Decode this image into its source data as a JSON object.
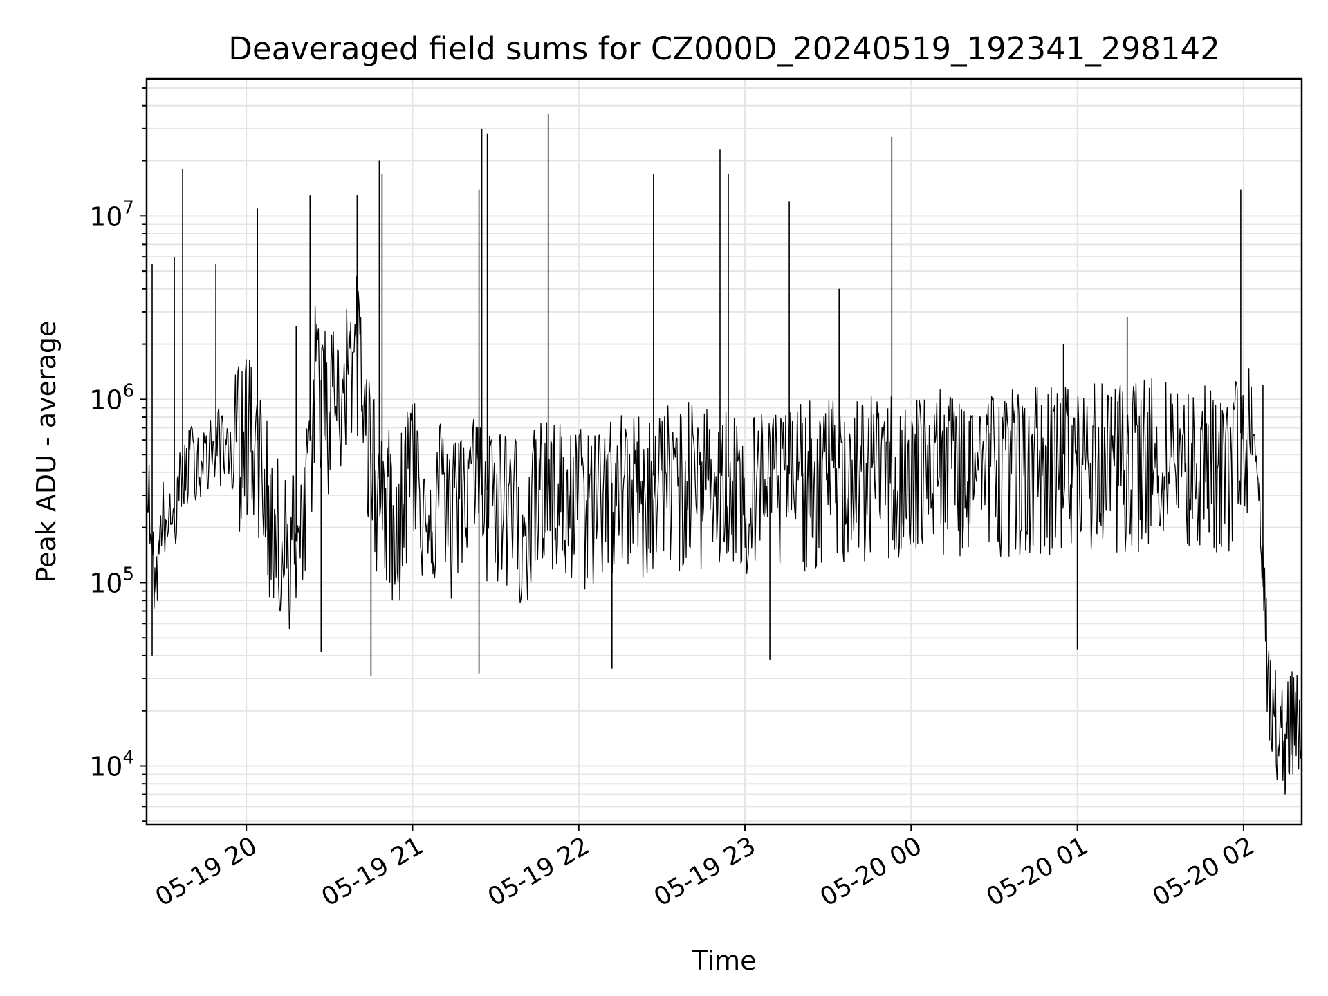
{
  "chart_data": {
    "type": "line",
    "title": "Deaveraged field sums for CZ000D_20240519_192341_298142",
    "xlabel": "Time",
    "ylabel": "Peak ADU - average",
    "yscale": "log",
    "ylim": [
      4800,
      56000000
    ],
    "xlim": [
      "2024-05-19 19:24",
      "2024-05-20 02:21"
    ],
    "grid": true,
    "line_color": "#000000",
    "grid_color": "#e5e5e5",
    "x_ticks": [
      {
        "label": "05-19 20",
        "value": "2024-05-19 20:00"
      },
      {
        "label": "05-19 21",
        "value": "2024-05-19 21:00"
      },
      {
        "label": "05-19 22",
        "value": "2024-05-19 22:00"
      },
      {
        "label": "05-19 23",
        "value": "2024-05-19 23:00"
      },
      {
        "label": "05-20 00",
        "value": "2024-05-20 00:00"
      },
      {
        "label": "05-20 01",
        "value": "2024-05-20 01:00"
      },
      {
        "label": "05-20 02",
        "value": "2024-05-20 02:00"
      }
    ],
    "y_ticks": [
      {
        "base": "10",
        "exp": "4",
        "value": 10000
      },
      {
        "base": "10",
        "exp": "5",
        "value": 100000
      },
      {
        "base": "10",
        "exp": "6",
        "value": 1000000
      },
      {
        "base": "10",
        "exp": "7",
        "value": 10000000
      }
    ],
    "series": [
      {
        "x": [
          "2024-05-19 19:24",
          "2024-05-19 19:27",
          "2024-05-19 19:30",
          "2024-05-19 19:33",
          "2024-05-19 19:36",
          "2024-05-19 19:40",
          "2024-05-19 19:45",
          "2024-05-19 19:50",
          "2024-05-19 19:55",
          "2024-05-19 20:00",
          "2024-05-19 20:04",
          "2024-05-19 20:10",
          "2024-05-19 20:15",
          "2024-05-19 20:20",
          "2024-05-19 20:25",
          "2024-05-19 20:30",
          "2024-05-19 20:35",
          "2024-05-19 20:40",
          "2024-05-19 20:45",
          "2024-05-19 20:50",
          "2024-05-19 20:55",
          "2024-05-19 21:00",
          "2024-05-19 21:05",
          "2024-05-19 21:10",
          "2024-05-19 21:15",
          "2024-05-19 21:20",
          "2024-05-19 21:25",
          "2024-05-19 21:30",
          "2024-05-19 21:35",
          "2024-05-19 21:40",
          "2024-05-19 21:45",
          "2024-05-19 21:50",
          "2024-05-19 21:55",
          "2024-05-19 22:00",
          "2024-05-19 22:10",
          "2024-05-19 22:20",
          "2024-05-19 22:30",
          "2024-05-19 22:40",
          "2024-05-19 22:50",
          "2024-05-19 23:00",
          "2024-05-19 23:10",
          "2024-05-19 23:20",
          "2024-05-19 23:30",
          "2024-05-19 23:40",
          "2024-05-19 23:50",
          "2024-05-20 00:00",
          "2024-05-20 00:10",
          "2024-05-20 00:20",
          "2024-05-20 00:30",
          "2024-05-20 00:40",
          "2024-05-20 00:50",
          "2024-05-20 01:00",
          "2024-05-20 01:10",
          "2024-05-20 01:20",
          "2024-05-20 01:30",
          "2024-05-20 01:40",
          "2024-05-20 01:50",
          "2024-05-20 01:55",
          "2024-05-20 02:00",
          "2024-05-20 02:03",
          "2024-05-20 02:06",
          "2024-05-20 02:09",
          "2024-05-20 02:12",
          "2024-05-20 02:15",
          "2024-05-20 02:18",
          "2024-05-20 02:21"
        ],
        "y": [
          500000,
          100000,
          250000,
          200000,
          350000,
          500000,
          500000,
          600000,
          550000,
          800000,
          600000,
          200000,
          200000,
          150000,
          1500000,
          1000000,
          1500000,
          2000000,
          500000,
          300000,
          250000,
          600000,
          300000,
          350000,
          250000,
          500000,
          300000,
          350000,
          300000,
          250000,
          300000,
          350000,
          300000,
          300000,
          350000,
          350000,
          400000,
          400000,
          400000,
          350000,
          380000,
          400000,
          420000,
          420000,
          450000,
          450000,
          470000,
          470000,
          480000,
          500000,
          500000,
          500000,
          520000,
          500000,
          600000,
          500000,
          500000,
          500000,
          700000,
          600000,
          200000,
          30000,
          18000,
          15000,
          20000,
          18000
        ],
        "spikes": [
          {
            "x": "2024-05-19 19:26",
            "y": 5500000
          },
          {
            "x": "2024-05-19 19:34",
            "y": 6000000
          },
          {
            "x": "2024-05-19 19:37",
            "y": 18000000
          },
          {
            "x": "2024-05-19 19:49",
            "y": 5500000
          },
          {
            "x": "2024-05-19 20:04",
            "y": 11000000
          },
          {
            "x": "2024-05-19 20:18",
            "y": 2500000
          },
          {
            "x": "2024-05-19 20:23",
            "y": 13000000
          },
          {
            "x": "2024-05-19 20:40",
            "y": 13000000
          },
          {
            "x": "2024-05-19 20:48",
            "y": 20000000
          },
          {
            "x": "2024-05-19 20:49",
            "y": 17000000
          },
          {
            "x": "2024-05-19 21:24",
            "y": 14000000
          },
          {
            "x": "2024-05-19 21:25",
            "y": 30000000
          },
          {
            "x": "2024-05-19 21:27",
            "y": 28000000
          },
          {
            "x": "2024-05-19 21:49",
            "y": 36000000
          },
          {
            "x": "2024-05-19 22:27",
            "y": 17000000
          },
          {
            "x": "2024-05-19 22:51",
            "y": 23000000
          },
          {
            "x": "2024-05-19 22:54",
            "y": 17000000
          },
          {
            "x": "2024-05-19 23:16",
            "y": 12000000
          },
          {
            "x": "2024-05-19 23:34",
            "y": 4000000
          },
          {
            "x": "2024-05-19 23:53",
            "y": 27000000
          },
          {
            "x": "2024-05-20 00:55",
            "y": 2000000
          },
          {
            "x": "2024-05-20 01:18",
            "y": 2800000
          },
          {
            "x": "2024-05-20 01:59",
            "y": 14000000
          },
          {
            "x": "2024-05-20 02:07",
            "y": 1200000
          }
        ],
        "dips": [
          {
            "x": "2024-05-19 19:26",
            "y": 40000
          },
          {
            "x": "2024-05-19 20:27",
            "y": 42000
          },
          {
            "x": "2024-05-19 20:45",
            "y": 31000
          },
          {
            "x": "2024-05-19 21:24",
            "y": 32000
          },
          {
            "x": "2024-05-19 22:12",
            "y": 34000
          },
          {
            "x": "2024-05-19 23:09",
            "y": 38000
          },
          {
            "x": "2024-05-20 01:00",
            "y": 43000
          },
          {
            "x": "2024-05-20 02:15",
            "y": 7000
          }
        ]
      }
    ]
  }
}
